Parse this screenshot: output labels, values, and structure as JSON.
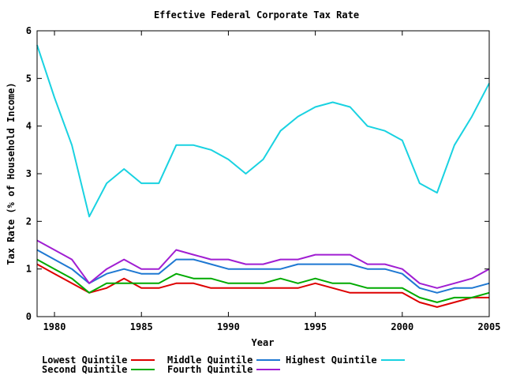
{
  "chart_data": {
    "type": "line",
    "title": "Effective Federal Corporate Tax Rate",
    "xlabel": "Year",
    "ylabel": "Tax Rate (% of Household Income)",
    "xlim": [
      1979,
      2005
    ],
    "ylim": [
      0,
      6
    ],
    "x_ticks": [
      1980,
      1985,
      1990,
      1995,
      2000,
      2005
    ],
    "y_ticks": [
      0,
      1,
      2,
      3,
      4,
      5,
      6
    ],
    "grid": false,
    "legend_position": "bottom",
    "x": [
      1979,
      1980,
      1981,
      1982,
      1983,
      1984,
      1985,
      1986,
      1987,
      1988,
      1989,
      1990,
      1991,
      1992,
      1993,
      1994,
      1995,
      1996,
      1997,
      1998,
      1999,
      2000,
      2001,
      2002,
      2003,
      2004,
      2005
    ],
    "series": [
      {
        "name": "Lowest Quintile",
        "color": "#dd0000",
        "values": [
          1.1,
          0.9,
          0.7,
          0.5,
          0.6,
          0.8,
          0.6,
          0.6,
          0.7,
          0.7,
          0.6,
          0.6,
          0.6,
          0.6,
          0.6,
          0.6,
          0.7,
          0.6,
          0.5,
          0.5,
          0.5,
          0.5,
          0.3,
          0.2,
          0.3,
          0.4,
          0.4
        ]
      },
      {
        "name": "Second Quintile",
        "color": "#00aa00",
        "values": [
          1.2,
          1.0,
          0.8,
          0.5,
          0.7,
          0.7,
          0.7,
          0.7,
          0.9,
          0.8,
          0.8,
          0.7,
          0.7,
          0.7,
          0.8,
          0.7,
          0.8,
          0.7,
          0.7,
          0.6,
          0.6,
          0.6,
          0.4,
          0.3,
          0.4,
          0.4,
          0.5
        ]
      },
      {
        "name": "Middle Quintile",
        "color": "#1e78d2",
        "values": [
          1.4,
          1.2,
          1.0,
          0.7,
          0.9,
          1.0,
          0.9,
          0.9,
          1.2,
          1.2,
          1.1,
          1.0,
          1.0,
          1.0,
          1.0,
          1.1,
          1.1,
          1.1,
          1.1,
          1.0,
          1.0,
          0.9,
          0.6,
          0.5,
          0.6,
          0.6,
          0.7
        ]
      },
      {
        "name": "Fourth Quintile",
        "color": "#a01ed2",
        "values": [
          1.6,
          1.4,
          1.2,
          0.7,
          1.0,
          1.2,
          1.0,
          1.0,
          1.4,
          1.3,
          1.2,
          1.2,
          1.1,
          1.1,
          1.2,
          1.2,
          1.3,
          1.3,
          1.3,
          1.1,
          1.1,
          1.0,
          0.7,
          0.6,
          0.7,
          0.8,
          1.0
        ]
      },
      {
        "name": "Highest Quintile",
        "color": "#19d2e1",
        "values": [
          5.7,
          4.6,
          3.6,
          2.1,
          2.8,
          3.1,
          2.8,
          2.8,
          3.6,
          3.6,
          3.5,
          3.3,
          3.0,
          3.3,
          3.9,
          4.2,
          4.4,
          4.5,
          4.4,
          4.0,
          3.9,
          3.7,
          2.8,
          2.6,
          3.6,
          4.2,
          4.9
        ]
      }
    ]
  }
}
